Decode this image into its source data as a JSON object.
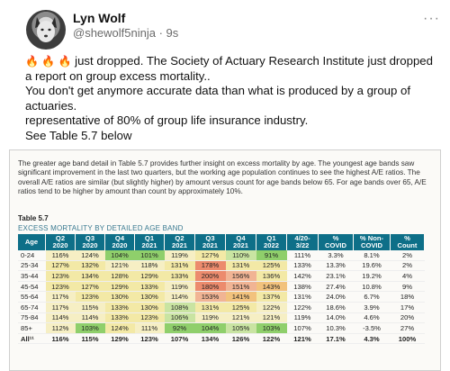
{
  "author": {
    "name": "Lyn Wolf",
    "handle": "@shewolf5ninja · 9s"
  },
  "post": {
    "fire": "🔥 🔥 🔥",
    "line1": " just dropped. The Society of Actuary Research Institute just dropped a report on group excess mortality..",
    "line2": "You don't get anymore accurate data than what is produced by a group of actuaries.",
    "line3": "representative of 80% of group life insurance industry.",
    "line4": "See Table 5.7 below"
  },
  "image": {
    "blurb": "The greater age band detail in Table 5.7 provides further insight on excess mortality by age. The youngest age bands saw significant improvement in the last two quarters, but the working age population continues to see the highest A/E ratios. The overall A/E ratios are similar (but slightly higher) by amount versus count for age bands below 65. For age bands over 65, A/E ratios tend to be higher by amount than count by approximately 10%.",
    "table_caption": "Table 5.7",
    "table_subtitle": "EXCESS MORTALITY BY DETAILED AGE BAND",
    "headers": [
      [
        "Age",
        ""
      ],
      [
        "Q2",
        "2020"
      ],
      [
        "Q3",
        "2020"
      ],
      [
        "Q4",
        "2020"
      ],
      [
        "Q1",
        "2021"
      ],
      [
        "Q2",
        "2021"
      ],
      [
        "Q3",
        "2021"
      ],
      [
        "Q4",
        "2021"
      ],
      [
        "Q1",
        "2022"
      ],
      [
        "4/20-",
        "3/22"
      ],
      [
        "%",
        "COVID"
      ],
      [
        "% Non-",
        "COVID"
      ],
      [
        "%",
        "Count"
      ]
    ],
    "rows": [
      {
        "age": "0-24",
        "v": [
          "116%",
          "124%",
          "104%",
          "101%",
          "119%",
          "127%",
          "110%",
          "91%",
          "111%",
          "3.3%",
          "8.1%",
          "2%"
        ],
        "c": [
          "c-lyellow",
          "c-lyellow",
          "c-green",
          "c-green",
          "c-lyellow",
          "c-yellow",
          "c-lgreen",
          "c-green",
          "",
          "",
          "",
          ""
        ]
      },
      {
        "age": "25-34",
        "v": [
          "127%",
          "132%",
          "121%",
          "118%",
          "131%",
          "178%",
          "131%",
          "125%",
          "133%",
          "13.3%",
          "19.6%",
          "2%"
        ],
        "c": [
          "c-yellow",
          "c-yellow",
          "c-lyellow",
          "c-lyellow",
          "c-yellow",
          "c-red",
          "c-yellow",
          "c-yellow",
          "",
          "",
          "",
          ""
        ]
      },
      {
        "age": "35-44",
        "v": [
          "123%",
          "134%",
          "128%",
          "129%",
          "133%",
          "200%",
          "156%",
          "136%",
          "142%",
          "23.1%",
          "19.2%",
          "4%"
        ],
        "c": [
          "c-yellow",
          "c-yellow",
          "c-yellow",
          "c-yellow",
          "c-yellow",
          "c-red",
          "c-pink",
          "c-yellow",
          "",
          "",
          "",
          ""
        ]
      },
      {
        "age": "45-54",
        "v": [
          "123%",
          "127%",
          "129%",
          "133%",
          "119%",
          "180%",
          "151%",
          "143%",
          "138%",
          "27.4%",
          "10.8%",
          "9%"
        ],
        "c": [
          "c-yellow",
          "c-yellow",
          "c-yellow",
          "c-yellow",
          "c-lyellow",
          "c-red",
          "c-pink",
          "c-orange",
          "",
          "",
          "",
          ""
        ]
      },
      {
        "age": "55-64",
        "v": [
          "117%",
          "123%",
          "130%",
          "130%",
          "114%",
          "153%",
          "141%",
          "137%",
          "131%",
          "24.0%",
          "6.7%",
          "18%"
        ],
        "c": [
          "c-lyellow",
          "c-yellow",
          "c-yellow",
          "c-yellow",
          "c-lyellow",
          "c-pink",
          "c-orange",
          "c-yellow",
          "",
          "",
          "",
          ""
        ]
      },
      {
        "age": "65-74",
        "v": [
          "117%",
          "115%",
          "133%",
          "130%",
          "108%",
          "131%",
          "125%",
          "122%",
          "122%",
          "18.6%",
          "3.9%",
          "17%"
        ],
        "c": [
          "c-lyellow",
          "c-lyellow",
          "c-yellow",
          "c-yellow",
          "c-lgreen",
          "c-yellow",
          "c-yellow",
          "c-lyellow",
          "",
          "",
          "",
          ""
        ]
      },
      {
        "age": "75-84",
        "v": [
          "114%",
          "114%",
          "133%",
          "123%",
          "106%",
          "119%",
          "121%",
          "121%",
          "119%",
          "14.0%",
          "4.6%",
          "20%"
        ],
        "c": [
          "c-lyellow",
          "c-lyellow",
          "c-yellow",
          "c-yellow",
          "c-lgreen",
          "c-lyellow",
          "c-lyellow",
          "c-lyellow",
          "",
          "",
          "",
          ""
        ]
      },
      {
        "age": "85+",
        "v": [
          "112%",
          "103%",
          "124%",
          "111%",
          "92%",
          "104%",
          "105%",
          "103%",
          "107%",
          "10.3%",
          "-3.5%",
          "27%"
        ],
        "c": [
          "c-lyellow",
          "c-green",
          "c-yellow",
          "c-lyellow",
          "c-green",
          "c-green",
          "c-lgreen",
          "c-green",
          "",
          "",
          "",
          ""
        ]
      },
      {
        "age": "All¹¹",
        "v": [
          "116%",
          "115%",
          "129%",
          "123%",
          "107%",
          "134%",
          "126%",
          "122%",
          "121%",
          "17.1%",
          "4.3%",
          "100%"
        ],
        "c": [
          "",
          "",
          "",
          "",
          "",
          "",
          "",
          "",
          "",
          "",
          "",
          ""
        ],
        "total": true
      }
    ]
  },
  "icons": {
    "more": "more-options-icon",
    "avatar": "wolf-avatar"
  }
}
